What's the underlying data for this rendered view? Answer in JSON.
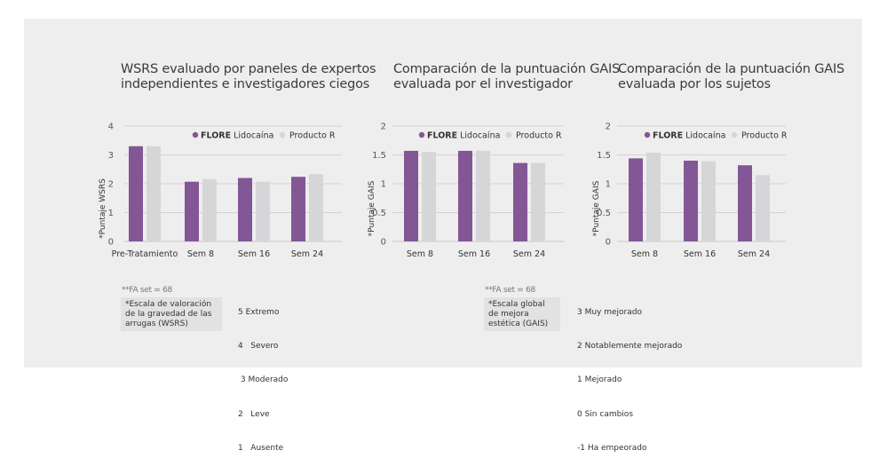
{
  "colors": {
    "flore": "#835796",
    "producto_r": "#d6d6d8",
    "grid": "#d8cfd8",
    "axis": "#c8c8c8",
    "panel": "#eeeeee"
  },
  "legend": {
    "flore_bold": "FLORE",
    "flore_rest": " Lidocaína",
    "producto_r": "Producto R"
  },
  "chart_data": [
    {
      "type": "bar",
      "title_line1": "WSRS evaluado por paneles de expertos",
      "title_line2": "independientes e investigadores ciegos",
      "ylabel": "*Puntaje WSRS",
      "xlabel": "",
      "ylim": [
        0,
        4
      ],
      "yticks": [
        "0",
        "1",
        "2",
        "3",
        "4"
      ],
      "grid": true,
      "legend_position": "top-right",
      "categories": [
        "Pre-Tratamiento",
        "Sem 8",
        "Sem 16",
        "Sem 24"
      ],
      "series": [
        {
          "name": "FLORE Lidocaína",
          "values": [
            3.3,
            2.07,
            2.2,
            2.24
          ]
        },
        {
          "name": "Producto R",
          "values": [
            3.3,
            2.16,
            2.07,
            2.33
          ]
        }
      ]
    },
    {
      "type": "bar",
      "title_line1": "Comparación de la puntuación GAIS",
      "title_line2": "evaluada por el investigador",
      "ylabel": "*Puntaje GAIS",
      "xlabel": "",
      "ylim": [
        0,
        2
      ],
      "yticks": [
        "0",
        "0.5",
        "1",
        "1.5",
        "2"
      ],
      "grid": true,
      "legend_position": "top-right",
      "categories": [
        "Sem 8",
        "Sem 16",
        "Sem 24"
      ],
      "series": [
        {
          "name": "FLORE Lidocaína",
          "values": [
            1.57,
            1.57,
            1.36
          ]
        },
        {
          "name": "Producto R",
          "values": [
            1.55,
            1.57,
            1.36
          ]
        }
      ]
    },
    {
      "type": "bar",
      "title_line1": "Comparación de la puntuación GAIS",
      "title_line2": "evaluada por los sujetos",
      "ylabel": "*Puntaje GAIS",
      "xlabel": "",
      "ylim": [
        0,
        2
      ],
      "yticks": [
        "0",
        "0.5",
        "1",
        "1.5",
        "2"
      ],
      "grid": true,
      "legend_position": "top-right",
      "categories": [
        "Sem 8",
        "Sem 16",
        "Sem 24"
      ],
      "series": [
        {
          "name": "FLORE Lidocaína",
          "values": [
            1.44,
            1.4,
            1.32
          ]
        },
        {
          "name": "Producto R",
          "values": [
            1.54,
            1.39,
            1.15
          ]
        }
      ]
    }
  ],
  "notes": {
    "wsrs": {
      "fa_set": "**FA set = 68",
      "scale_name": "*Escala de valoración de la gravedad de las arrugas (WSRS)",
      "scale_items": [
        "5 Extremo",
        "4   Severo",
        " 3 Moderado",
        "2   Leve",
        "1   Ausente"
      ]
    },
    "gais": {
      "fa_set": "**FA set = 68",
      "scale_name": "*Escala global de mejora estética (GAIS)",
      "scale_items": [
        "3 Muy mejorado",
        "2 Notablemente mejorado",
        "1 Mejorado",
        "0 Sin cambios",
        "-1 Ha empeorado"
      ]
    }
  }
}
